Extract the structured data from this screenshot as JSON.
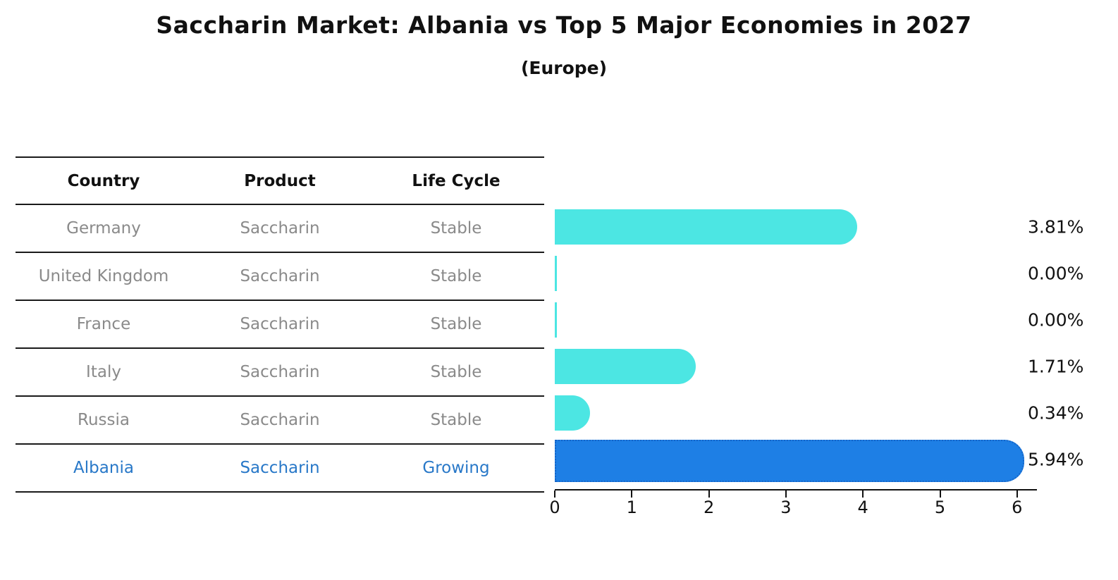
{
  "title": "Saccharin Market: Albania vs Top 5 Major Economies in 2027",
  "subtitle": "(Europe)",
  "table": {
    "headers": [
      "Country",
      "Product",
      "Life Cycle"
    ]
  },
  "rows": [
    {
      "country": "Germany",
      "product": "Saccharin",
      "life_cycle": "Stable",
      "value": 3.81,
      "value_label": "3.81%",
      "highlight": false
    },
    {
      "country": "United Kingdom",
      "product": "Saccharin",
      "life_cycle": "Stable",
      "value": 0.0,
      "value_label": "0.00%",
      "highlight": false
    },
    {
      "country": "France",
      "product": "Saccharin",
      "life_cycle": "Stable",
      "value": 0.0,
      "value_label": "0.00%",
      "highlight": false
    },
    {
      "country": "Italy",
      "product": "Saccharin",
      "life_cycle": "Stable",
      "value": 1.71,
      "value_label": "1.71%",
      "highlight": false
    },
    {
      "country": "Russia",
      "product": "Saccharin",
      "life_cycle": "Stable",
      "value": 0.34,
      "value_label": "0.34%",
      "highlight": false
    },
    {
      "country": "Albania",
      "product": "Saccharin",
      "life_cycle": "Growing",
      "value": 5.94,
      "value_label": "5.94%",
      "highlight": true
    }
  ],
  "chart_data": {
    "type": "bar",
    "orientation": "horizontal",
    "title": "Saccharin Market: Albania vs Top 5 Major Economies in 2027 (Europe)",
    "categories": [
      "Germany",
      "United Kingdom",
      "France",
      "Italy",
      "Russia",
      "Albania"
    ],
    "values": [
      3.81,
      0.0,
      0.0,
      1.71,
      0.34,
      5.94
    ],
    "value_labels": [
      "3.81%",
      "0.00%",
      "0.00%",
      "1.71%",
      "0.34%",
      "5.94%"
    ],
    "xlabel": "",
    "ylabel": "",
    "xlim": [
      0,
      6.27
    ],
    "x_ticks": [
      0,
      1,
      2,
      3,
      4,
      5,
      6
    ],
    "grid": false,
    "legend": false,
    "highlight_series": "Albania"
  },
  "colors": {
    "bar_default": "#4cе6e3",
    "bar_default_hex": "#4CE6E3",
    "bar_highlight": "#1E7FE5",
    "bar_highlight_border": "#1565C8",
    "row_text": "#8A8A8A",
    "highlight_text": "#2878C8",
    "header_text": "#111111",
    "value_text": "#111111",
    "axis": "#111111"
  }
}
